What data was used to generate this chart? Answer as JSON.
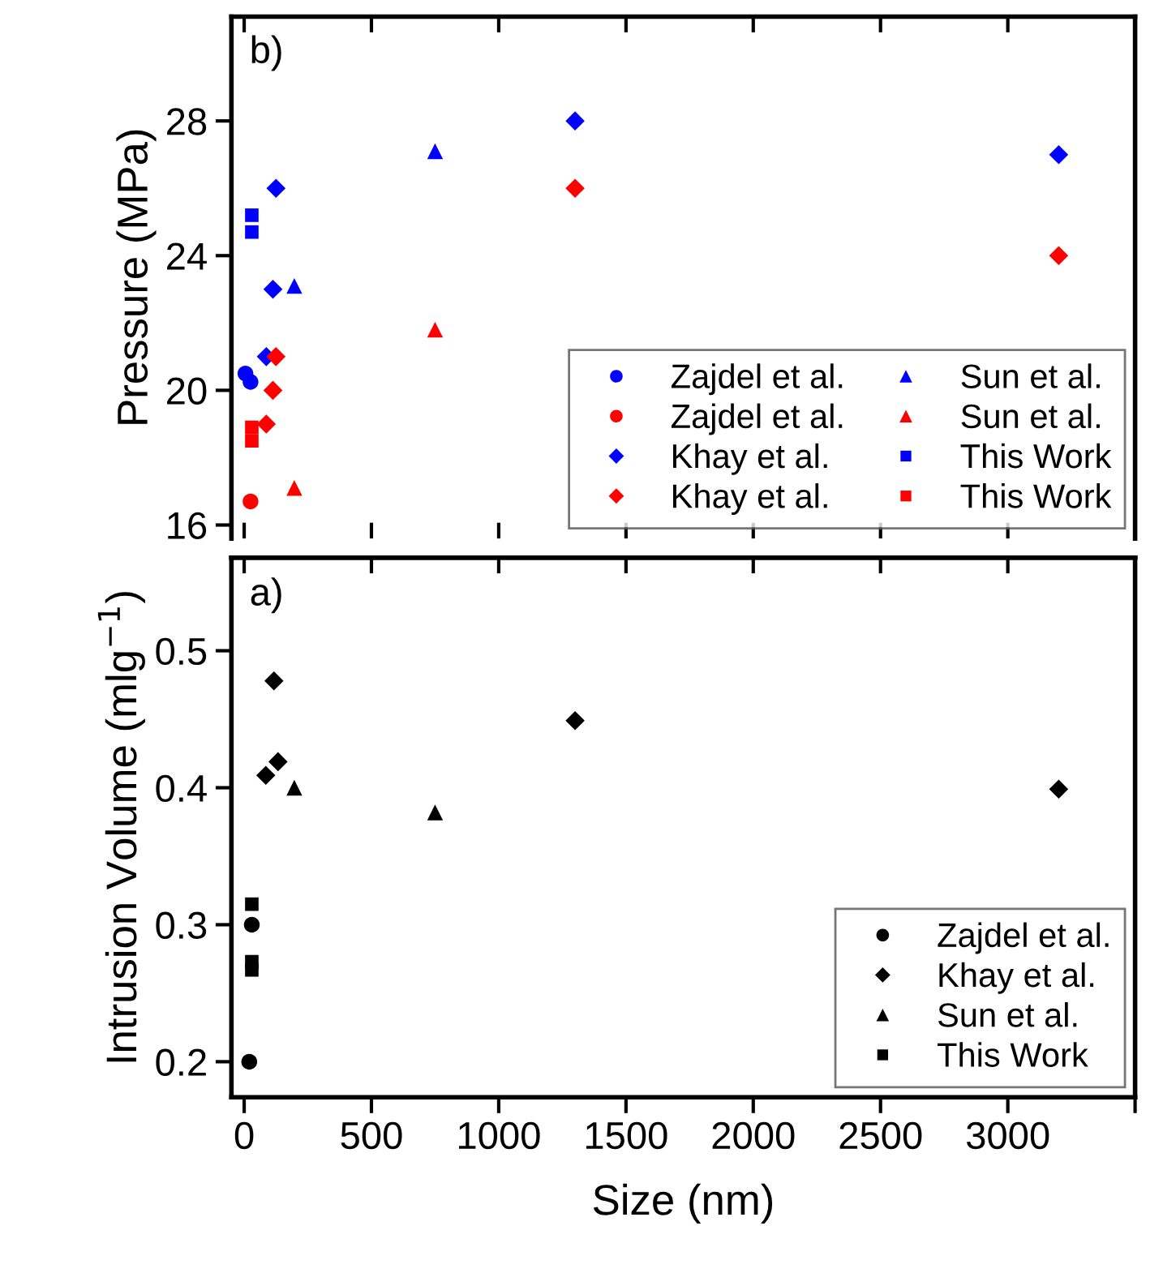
{
  "chart_data": [
    {
      "type": "scatter",
      "ylabel": "Pressure (MPa)",
      "annotations": [
        "b)"
      ],
      "xlim": [
        -50,
        3500
      ],
      "xticks": [
        0,
        500,
        1000,
        1500,
        2000,
        2500,
        3000,
        {
          "value": 3500,
          "label": null
        }
      ],
      "ylim": [
        15.6,
        31.1
      ],
      "yticks": [
        16,
        20,
        24,
        28
      ],
      "tick_labels": "y",
      "legend": "bottom right",
      "grid": false,
      "series": [
        {
          "name": "Zajdel et al.",
          "color": "#0000ff",
          "marker": "circle",
          "x": [
            5,
            25
          ],
          "values": [
            20.5,
            20.25
          ]
        },
        {
          "name": "Zajdel et al.",
          "color": "#ff0000",
          "marker": "circle",
          "x": [
            25
          ],
          "values": [
            16.7
          ]
        },
        {
          "name": "Khay et al.",
          "color": "#0000ff",
          "marker": "diamond",
          "x": [
            87,
            113,
            125,
            1300,
            3200
          ],
          "values": [
            21,
            23,
            26,
            28,
            27
          ]
        },
        {
          "name": "Khay et al.",
          "color": "#ff0000",
          "marker": "diamond",
          "x": [
            87,
            113,
            125,
            1300,
            3200
          ],
          "values": [
            19,
            20,
            21,
            26,
            24
          ]
        },
        {
          "name": "Sun et al.",
          "color": "#0000ff",
          "marker": "triangle",
          "x": [
            197,
            750
          ],
          "values": [
            23.1,
            27.1
          ]
        },
        {
          "name": "Sun et al.",
          "color": "#ff0000",
          "marker": "triangle",
          "x": [
            197,
            750
          ],
          "values": [
            17.1,
            21.8
          ]
        },
        {
          "name": "This Work",
          "color": "#0000ff",
          "marker": "square",
          "x": [
            30,
            30
          ],
          "values": [
            24.7,
            25.2
          ]
        },
        {
          "name": "This Work",
          "color": "#ff0000",
          "marker": "square",
          "x": [
            30,
            30
          ],
          "values": [
            18.5,
            18.9
          ]
        }
      ]
    },
    {
      "type": "scatter",
      "xlabel": "Size (nm)",
      "ylabel": "Intrusion Volume (mlg$^{−1}$)",
      "annotations": [
        "a)"
      ],
      "xlim": [
        -50,
        3500
      ],
      "xticks": [
        0,
        500,
        1000,
        1500,
        2000,
        2500,
        3000,
        {
          "value": 3500,
          "label": null
        }
      ],
      "ylim": [
        0.174,
        0.568
      ],
      "yticks": [
        0.2,
        0.3,
        0.4,
        0.5
      ],
      "legend": "bottom right",
      "grid": false,
      "series": [
        {
          "name": "Zajdel et al.",
          "color": "#000000",
          "marker": "circle",
          "x": [
            20,
            30
          ],
          "values": [
            0.2,
            0.3
          ]
        },
        {
          "name": "Khay et al.",
          "color": "#000000",
          "marker": "diamond",
          "x": [
            85,
            117,
            133,
            1300,
            3200
          ],
          "values": [
            0.409,
            0.478,
            0.419,
            0.449,
            0.399
          ]
        },
        {
          "name": "Sun et al.",
          "color": "#000000",
          "marker": "triangle",
          "x": [
            197,
            750
          ],
          "values": [
            0.4,
            0.382
          ]
        },
        {
          "name": "This Work",
          "color": "#000000",
          "marker": "square",
          "x": [
            30,
            30,
            30
          ],
          "values": [
            0.267,
            0.273,
            0.315
          ]
        }
      ]
    }
  ]
}
